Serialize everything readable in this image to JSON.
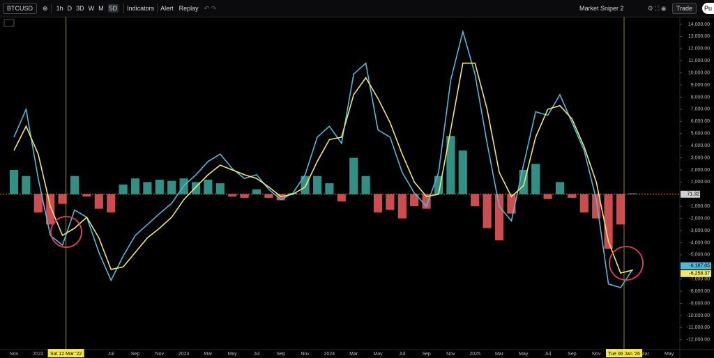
{
  "toolbar": {
    "symbol": "BTCUSD",
    "intervals": [
      "1h",
      "D",
      "3D",
      "W",
      "M",
      "5D"
    ],
    "indicators": "Indicators",
    "alert": "Alert",
    "replay": "Replay",
    "layout": "Market Sniper 2",
    "trade": "Trade",
    "publish": "Pu"
  },
  "crosshair_labels": [
    "Sat 12 Mar '22",
    "Tue 06 Jan '26"
  ],
  "chart_data": {
    "type": "macd",
    "categories": [
      "Nov",
      null,
      "2022",
      null,
      null,
      null,
      null,
      null,
      "Jul",
      null,
      "Sep",
      null,
      "Nov",
      null,
      "2023",
      null,
      "Mar",
      null,
      "May",
      null,
      "Jul",
      null,
      "Sep",
      null,
      "Nov",
      null,
      "2024",
      null,
      "Mar",
      null,
      "May",
      null,
      "Jul",
      null,
      "Sep",
      null,
      "Nov",
      null,
      "2025",
      null,
      "Mar",
      null,
      "May",
      null,
      "Jul",
      null,
      "Sep",
      null,
      "Nov",
      null,
      null,
      null,
      "Mar",
      null,
      "May"
    ],
    "series": [
      {
        "color": "#4fb9d9",
        "values": [
          4700,
          7000,
          1300,
          -3400,
          -4200,
          -1300,
          -1900,
          -4800,
          -7100,
          -5100,
          -3400,
          -2500,
          -1600,
          -750,
          700,
          1600,
          2700,
          3300,
          2100,
          1300,
          1600,
          400,
          -450,
          100,
          1600,
          4700,
          5600,
          4200,
          9900,
          10800,
          5300,
          4700,
          1800,
          100,
          -1000,
          1800,
          9400,
          13400,
          9900,
          4200,
          -1000,
          -2200,
          2400,
          6800,
          6500,
          8200,
          5900,
          3600,
          -450,
          -7400,
          -7700,
          -6187.05,
          null,
          null,
          null
        ],
        "value_labels": [
          null,
          null,
          null,
          null,
          null,
          null,
          null,
          null,
          null,
          null,
          null,
          null,
          null,
          null,
          null,
          null,
          null,
          null,
          null,
          null,
          null,
          null,
          null,
          null,
          null,
          null,
          null,
          null,
          null,
          null,
          null,
          null,
          null,
          null,
          null,
          null,
          null,
          null,
          null,
          null,
          null,
          null,
          null,
          null,
          null,
          null,
          null,
          null,
          null,
          null,
          null,
          "-6,187.05",
          null,
          null,
          null
        ]
      },
      {
        "color": "#f2e66b",
        "values": [
          3600,
          5600,
          3300,
          -1000,
          -3400,
          -2800,
          -1900,
          -3600,
          -6200,
          -6000,
          -4800,
          -3600,
          -2800,
          -1900,
          -450,
          600,
          1600,
          2400,
          2000,
          1600,
          1300,
          600,
          -200,
          0,
          600,
          2700,
          4500,
          4700,
          8200,
          9600,
          7900,
          5900,
          3300,
          1000,
          -200,
          0,
          5300,
          10800,
          10800,
          7000,
          1800,
          -200,
          700,
          4700,
          7000,
          7300,
          6200,
          3900,
          1000,
          -3900,
          -6500,
          -6258.37,
          null,
          null,
          null
        ],
        "value_labels": [
          null,
          null,
          null,
          null,
          null,
          null,
          null,
          null,
          null,
          null,
          null,
          null,
          null,
          null,
          null,
          null,
          null,
          null,
          null,
          null,
          null,
          null,
          null,
          null,
          null,
          null,
          null,
          null,
          null,
          null,
          null,
          null,
          null,
          null,
          null,
          null,
          null,
          null,
          null,
          null,
          null,
          null,
          null,
          null,
          null,
          null,
          null,
          null,
          null,
          null,
          null,
          "-6,258.37",
          null,
          null,
          null
        ]
      }
    ],
    "histogram": {
      "positive_color": "#3aa99a",
      "negative_color": "#ef5a5a",
      "values": [
        2000,
        1500,
        -1500,
        -2500,
        -800,
        1500,
        -200,
        -1200,
        -1500,
        800,
        1300,
        1000,
        1200,
        1100,
        1300,
        1000,
        1200,
        900,
        -200,
        -300,
        400,
        -300,
        -500,
        100,
        1500,
        1500,
        900,
        -600,
        3000,
        1500,
        -1500,
        -1300,
        -2000,
        -1000,
        -1200,
        1500,
        4800,
        3600,
        -1000,
        -2800,
        -3800,
        -1600,
        2000,
        2500,
        -400,
        1000,
        -300,
        -1500,
        -2000,
        -4500,
        -2500,
        71.32,
        null,
        null,
        null
      ]
    },
    "ylim": [
      -12700,
      14400
    ],
    "yticks": [
      {
        "value": 14000,
        "label": "14,000.00"
      },
      {
        "value": 13000,
        "label": "13,000.00"
      },
      {
        "value": 12000,
        "label": "12,000.00"
      },
      {
        "value": 11000,
        "label": "11,000.00"
      },
      {
        "value": 10000,
        "label": "10,000.00"
      },
      {
        "value": 9000,
        "label": "9,000.00"
      },
      {
        "value": 8000,
        "label": "8,000.00"
      },
      {
        "value": 7000,
        "label": "7,000.00"
      },
      {
        "value": 6000,
        "label": "6,000.00"
      },
      {
        "value": 5000,
        "label": "5,000.00"
      },
      {
        "value": 4000,
        "label": "4,000.00"
      },
      {
        "value": 3000,
        "label": "3,000.00"
      },
      {
        "value": 2000,
        "label": "2,000.00"
      },
      {
        "value": 1000,
        "label": "1,000.00"
      },
      {
        "value": -1000,
        "label": "-1,000.00"
      },
      {
        "value": -2000,
        "label": "-2,000.00"
      },
      {
        "value": -3000,
        "label": "-3,000.00"
      },
      {
        "value": -4000,
        "label": "-4,000.00"
      },
      {
        "value": -5000,
        "label": "-5,000.00"
      },
      {
        "value": -7000,
        "label": "-7,000.00"
      },
      {
        "value": -8000,
        "label": "-8,000.00"
      },
      {
        "value": -9000,
        "label": "-9,000.00"
      },
      {
        "value": -10000,
        "label": "-10,000.00"
      },
      {
        "value": -11000,
        "label": "-11,000.00"
      },
      {
        "value": -12000,
        "label": "-12,000.00"
      }
    ],
    "grid": false
  }
}
